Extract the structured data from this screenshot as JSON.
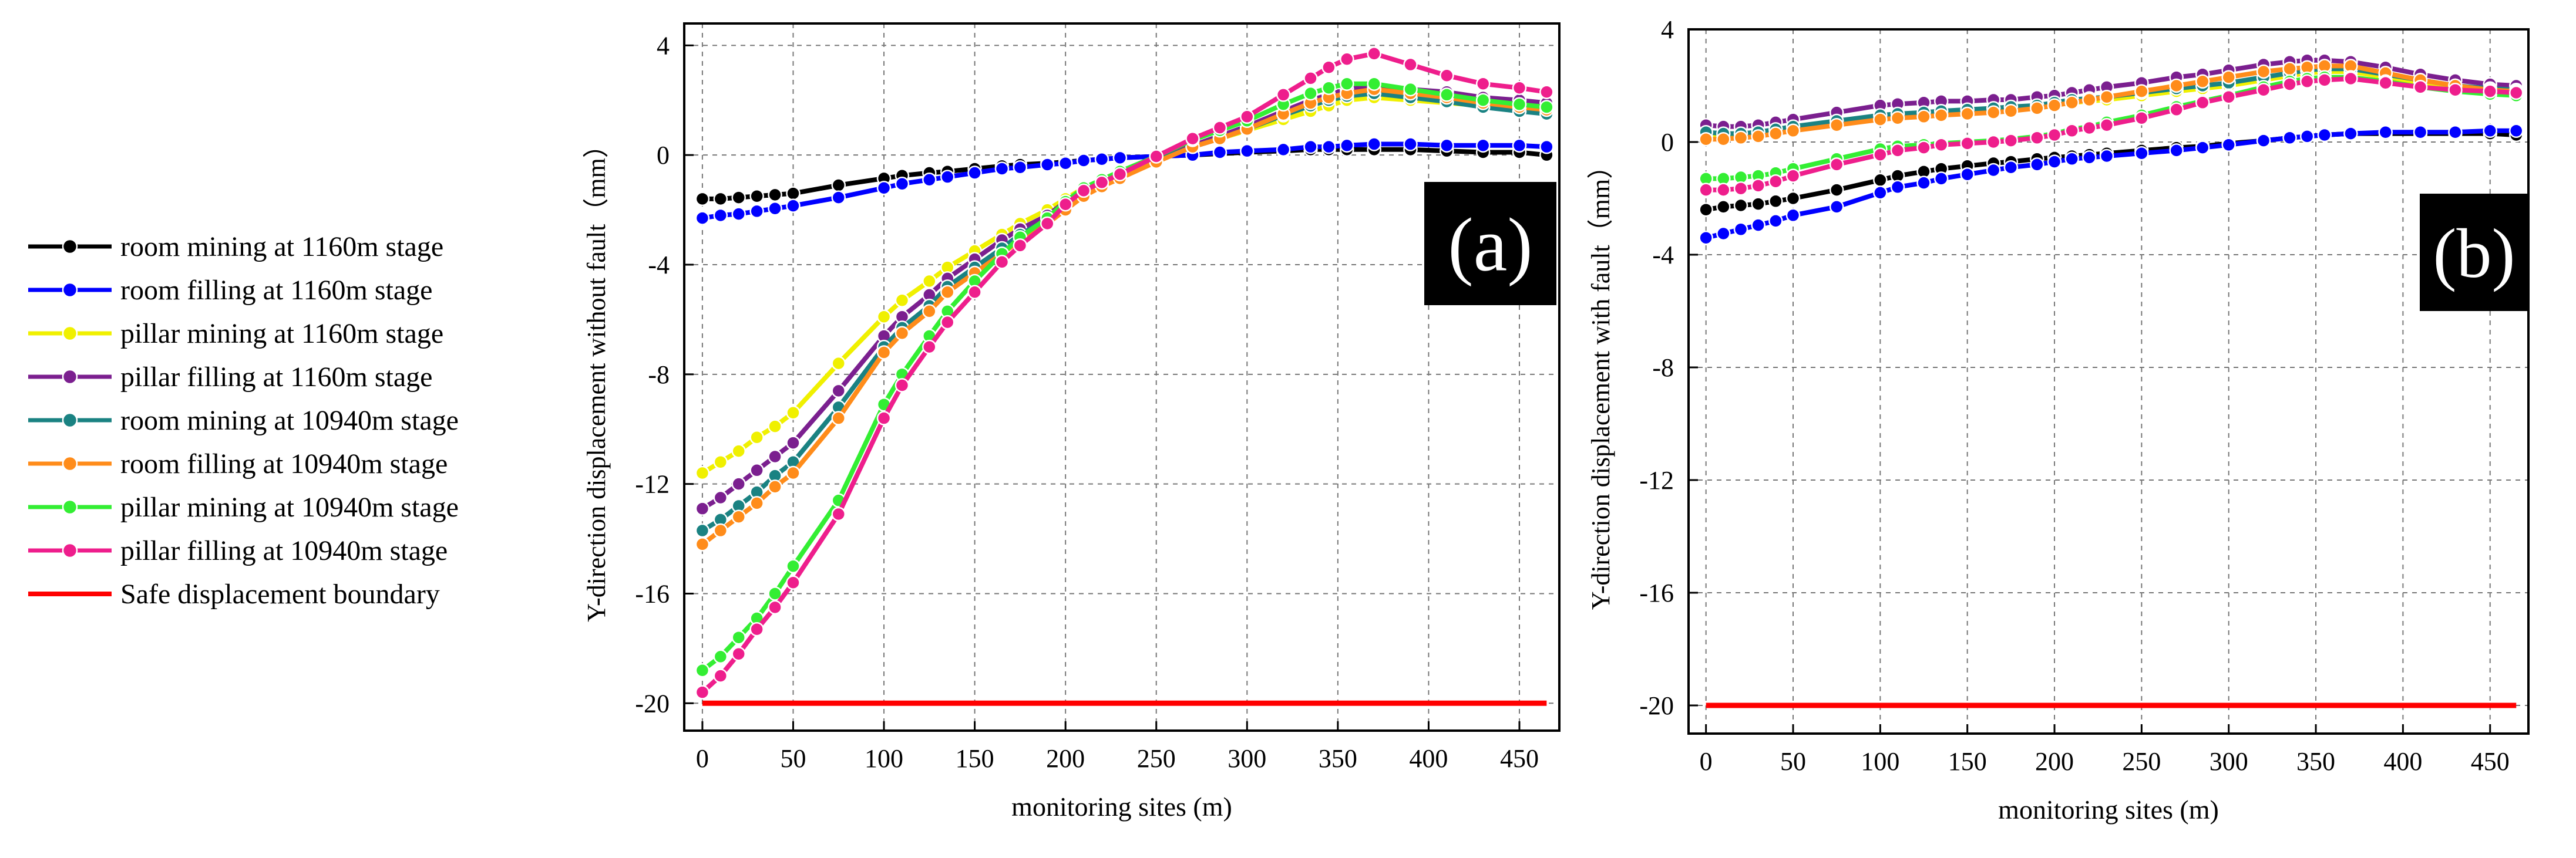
{
  "figure": {
    "panels": [
      "(a)",
      "(b)"
    ],
    "xlabel": "monitoring sites (m)"
  },
  "colors": {
    "room_mining_1160": "#000000",
    "room_filling_1160": "#0000ff",
    "pillar_mining_1160": "#f0f000",
    "pillar_filling_1160": "#7b1f8f",
    "room_mining_10940": "#1a8282",
    "room_filling_10940": "#ff8c1a",
    "pillar_mining_10940": "#33ee33",
    "pillar_filling_10940": "#ee1e8c",
    "safe_boundary": "#ff0000"
  },
  "chart_data": [
    {
      "type": "line",
      "panel_label": "(a)",
      "title": "",
      "xlabel": "monitoring sites (m)",
      "ylabel": "Y-direction displacement without fault（mm）",
      "xlim": [
        -10,
        472
      ],
      "ylim": [
        -21,
        4.8
      ],
      "xticks": [
        0,
        50,
        100,
        150,
        200,
        250,
        300,
        350,
        400,
        450
      ],
      "yticks": [
        4,
        0,
        -4,
        -8,
        -12,
        -16,
        -20
      ],
      "grid": true,
      "legend_position": "left-outside",
      "x": [
        0,
        10,
        20,
        30,
        40,
        50,
        75,
        100,
        110,
        125,
        135,
        150,
        165,
        175,
        190,
        200,
        210,
        220,
        230,
        250,
        270,
        285,
        300,
        320,
        335,
        345,
        355,
        370,
        390,
        410,
        430,
        450,
        465
      ],
      "series": [
        {
          "name": "room mining at 1160m stage",
          "color_key": "room_mining_1160",
          "marker": true,
          "values": [
            -1.6,
            -1.6,
            -1.55,
            -1.5,
            -1.45,
            -1.4,
            -1.1,
            -0.85,
            -0.75,
            -0.65,
            -0.6,
            -0.5,
            -0.4,
            -0.35,
            -0.3,
            -0.25,
            -0.2,
            -0.15,
            -0.1,
            -0.05,
            0.0,
            0.05,
            0.1,
            0.15,
            0.2,
            0.2,
            0.2,
            0.2,
            0.2,
            0.15,
            0.1,
            0.1,
            0.0
          ]
        },
        {
          "name": "room filling at 1160m stage",
          "color_key": "room_filling_1160",
          "marker": true,
          "values": [
            -2.3,
            -2.2,
            -2.15,
            -2.05,
            -1.95,
            -1.85,
            -1.55,
            -1.2,
            -1.05,
            -0.9,
            -0.8,
            -0.65,
            -0.5,
            -0.45,
            -0.35,
            -0.3,
            -0.2,
            -0.15,
            -0.1,
            -0.05,
            0.0,
            0.1,
            0.15,
            0.2,
            0.3,
            0.3,
            0.35,
            0.4,
            0.4,
            0.35,
            0.35,
            0.35,
            0.3
          ]
        },
        {
          "name": "pillar mining at 1160m stage",
          "color_key": "pillar_mining_1160",
          "marker": true,
          "values": [
            -11.6,
            -11.2,
            -10.8,
            -10.3,
            -9.9,
            -9.4,
            -7.6,
            -5.9,
            -5.3,
            -4.6,
            -4.1,
            -3.5,
            -2.9,
            -2.5,
            -2.0,
            -1.6,
            -1.2,
            -0.9,
            -0.6,
            -0.1,
            0.35,
            0.6,
            0.9,
            1.3,
            1.6,
            1.8,
            2.0,
            2.1,
            2.0,
            1.9,
            1.8,
            1.7,
            1.6
          ]
        },
        {
          "name": "pillar filling at 1160m stage",
          "color_key": "pillar_filling_1160",
          "marker": true,
          "values": [
            -12.9,
            -12.5,
            -12.0,
            -11.5,
            -11.0,
            -10.5,
            -8.6,
            -6.6,
            -5.9,
            -5.1,
            -4.5,
            -3.8,
            -3.1,
            -2.7,
            -2.2,
            -1.7,
            -1.3,
            -1.0,
            -0.7,
            -0.15,
            0.35,
            0.7,
            1.05,
            1.6,
            2.0,
            2.2,
            2.4,
            2.5,
            2.4,
            2.3,
            2.1,
            2.0,
            1.9
          ]
        },
        {
          "name": "room mining at 10940m stage",
          "color_key": "room_mining_10940",
          "marker": true,
          "values": [
            -13.7,
            -13.3,
            -12.8,
            -12.3,
            -11.7,
            -11.2,
            -9.2,
            -7.0,
            -6.3,
            -5.5,
            -4.8,
            -4.1,
            -3.4,
            -2.9,
            -2.35,
            -1.85,
            -1.4,
            -1.1,
            -0.8,
            -0.2,
            0.3,
            0.6,
            0.95,
            1.45,
            1.8,
            2.0,
            2.15,
            2.25,
            2.1,
            1.95,
            1.75,
            1.6,
            1.5
          ]
        },
        {
          "name": "room filling at 10940m stage",
          "color_key": "room_filling_10940",
          "marker": true,
          "values": [
            -14.2,
            -13.7,
            -13.2,
            -12.7,
            -12.1,
            -11.6,
            -9.6,
            -7.2,
            -6.5,
            -5.7,
            -5.0,
            -4.3,
            -3.6,
            -3.1,
            -2.5,
            -2.0,
            -1.5,
            -1.15,
            -0.85,
            -0.25,
            0.3,
            0.6,
            0.95,
            1.5,
            1.9,
            2.1,
            2.25,
            2.4,
            2.25,
            2.1,
            1.9,
            1.75,
            1.65
          ]
        },
        {
          "name": "pillar mining at 10940m stage",
          "color_key": "pillar_mining_10940",
          "marker": true,
          "values": [
            -18.8,
            -18.3,
            -17.6,
            -16.9,
            -16.0,
            -15.0,
            -12.6,
            -9.1,
            -8.0,
            -6.6,
            -5.7,
            -4.6,
            -3.6,
            -3.0,
            -2.3,
            -1.7,
            -1.2,
            -0.9,
            -0.6,
            -0.05,
            0.55,
            0.9,
            1.25,
            1.85,
            2.25,
            2.45,
            2.6,
            2.6,
            2.4,
            2.2,
            2.0,
            1.85,
            1.75
          ]
        },
        {
          "name": "pillar filling at 10940m stage",
          "color_key": "pillar_filling_10940",
          "marker": true,
          "values": [
            -19.6,
            -19.0,
            -18.2,
            -17.3,
            -16.5,
            -15.6,
            -13.1,
            -9.6,
            -8.4,
            -7.0,
            -6.1,
            -5.0,
            -3.9,
            -3.3,
            -2.5,
            -1.8,
            -1.3,
            -1.0,
            -0.7,
            -0.05,
            0.6,
            1.0,
            1.4,
            2.2,
            2.8,
            3.2,
            3.5,
            3.7,
            3.3,
            2.9,
            2.6,
            2.45,
            2.3
          ]
        },
        {
          "name": "Safe displacement boundary",
          "color_key": "safe_boundary",
          "marker": false,
          "values": [
            -20,
            -20,
            -20,
            -20,
            -20,
            -20,
            -20,
            -20,
            -20,
            -20,
            -20,
            -20,
            -20,
            -20,
            -20,
            -20,
            -20,
            -20,
            -20,
            -20,
            -20,
            -20,
            -20,
            -20,
            -20,
            -20,
            -20,
            -20,
            -20,
            -20,
            -20,
            -20,
            -20
          ]
        }
      ]
    },
    {
      "type": "line",
      "panel_label": "(b)",
      "title": "",
      "xlabel": "monitoring sites (m)",
      "ylabel": "Y-direction displacement with fault（mm）",
      "xlim": [
        -10,
        472
      ],
      "ylim": [
        -21,
        4
      ],
      "xticks": [
        0,
        50,
        100,
        150,
        200,
        250,
        300,
        350,
        400,
        450
      ],
      "yticks": [
        4,
        0,
        -4,
        -8,
        -12,
        -16,
        -20
      ],
      "grid": true,
      "legend_position": "left-outside",
      "x": [
        0,
        10,
        20,
        30,
        40,
        50,
        75,
        100,
        110,
        125,
        135,
        150,
        165,
        175,
        190,
        200,
        210,
        220,
        230,
        250,
        270,
        285,
        300,
        320,
        335,
        345,
        355,
        370,
        390,
        410,
        430,
        450,
        465
      ],
      "series": [
        {
          "name": "room mining at 1160m stage",
          "color_key": "room_mining_1160",
          "marker": true,
          "values": [
            -2.4,
            -2.3,
            -2.25,
            -2.2,
            -2.1,
            -2.0,
            -1.7,
            -1.35,
            -1.2,
            -1.05,
            -0.95,
            -0.85,
            -0.75,
            -0.7,
            -0.6,
            -0.55,
            -0.5,
            -0.45,
            -0.4,
            -0.3,
            -0.2,
            -0.15,
            -0.05,
            0.05,
            0.15,
            0.2,
            0.25,
            0.3,
            0.3,
            0.3,
            0.3,
            0.3,
            0.25
          ]
        },
        {
          "name": "room filling at 1160m stage",
          "color_key": "room_filling_1160",
          "marker": true,
          "values": [
            -3.4,
            -3.25,
            -3.1,
            -2.95,
            -2.8,
            -2.6,
            -2.3,
            -1.8,
            -1.6,
            -1.45,
            -1.3,
            -1.15,
            -1.0,
            -0.9,
            -0.8,
            -0.7,
            -0.6,
            -0.55,
            -0.5,
            -0.4,
            -0.3,
            -0.2,
            -0.1,
            0.05,
            0.15,
            0.2,
            0.25,
            0.3,
            0.35,
            0.35,
            0.35,
            0.4,
            0.4
          ]
        },
        {
          "name": "pillar mining at 1160m stage",
          "color_key": "pillar_mining_1160",
          "marker": true,
          "values": [
            0.2,
            0.2,
            0.25,
            0.3,
            0.35,
            0.45,
            0.65,
            0.85,
            0.9,
            0.95,
            1.0,
            1.05,
            1.1,
            1.15,
            1.2,
            1.3,
            1.4,
            1.45,
            1.5,
            1.65,
            1.8,
            1.9,
            2.0,
            2.2,
            2.35,
            2.45,
            2.5,
            2.5,
            2.3,
            2.1,
            1.95,
            1.85,
            1.8
          ]
        },
        {
          "name": "pillar filling at 1160m stage",
          "color_key": "pillar_filling_1160",
          "marker": true,
          "values": [
            0.6,
            0.55,
            0.55,
            0.6,
            0.7,
            0.8,
            1.05,
            1.3,
            1.35,
            1.4,
            1.45,
            1.45,
            1.5,
            1.5,
            1.6,
            1.65,
            1.75,
            1.85,
            1.95,
            2.1,
            2.3,
            2.4,
            2.55,
            2.75,
            2.85,
            2.9,
            2.9,
            2.85,
            2.65,
            2.4,
            2.2,
            2.05,
            2.0
          ]
        },
        {
          "name": "room mining at 10940m stage",
          "color_key": "room_mining_10940",
          "marker": true,
          "values": [
            0.35,
            0.3,
            0.3,
            0.35,
            0.45,
            0.55,
            0.75,
            0.95,
            1.0,
            1.05,
            1.1,
            1.15,
            1.2,
            1.25,
            1.3,
            1.4,
            1.5,
            1.55,
            1.6,
            1.75,
            1.9,
            2.0,
            2.1,
            2.3,
            2.45,
            2.55,
            2.6,
            2.6,
            2.4,
            2.2,
            2.0,
            1.9,
            1.85
          ]
        },
        {
          "name": "room filling at 10940m stage",
          "color_key": "room_filling_10940",
          "marker": true,
          "values": [
            0.1,
            0.1,
            0.15,
            0.2,
            0.3,
            0.4,
            0.6,
            0.8,
            0.85,
            0.9,
            0.95,
            1.0,
            1.05,
            1.1,
            1.2,
            1.3,
            1.4,
            1.5,
            1.6,
            1.8,
            2.0,
            2.15,
            2.3,
            2.5,
            2.6,
            2.65,
            2.7,
            2.7,
            2.45,
            2.2,
            2.0,
            1.85,
            1.8
          ]
        },
        {
          "name": "pillar mining at 10940m stage",
          "color_key": "pillar_mining_10940",
          "marker": true,
          "values": [
            -1.3,
            -1.3,
            -1.25,
            -1.2,
            -1.1,
            -0.95,
            -0.6,
            -0.25,
            -0.15,
            -0.1,
            -0.05,
            0.0,
            0.05,
            0.1,
            0.2,
            0.3,
            0.45,
            0.55,
            0.7,
            0.95,
            1.25,
            1.45,
            1.65,
            1.95,
            2.15,
            2.25,
            2.3,
            2.3,
            2.15,
            1.95,
            1.8,
            1.7,
            1.65
          ]
        },
        {
          "name": "pillar filling at 10940m stage",
          "color_key": "pillar_filling_10940",
          "marker": true,
          "values": [
            -1.7,
            -1.7,
            -1.65,
            -1.55,
            -1.4,
            -1.2,
            -0.8,
            -0.45,
            -0.3,
            -0.2,
            -0.1,
            -0.05,
            0.0,
            0.05,
            0.15,
            0.25,
            0.4,
            0.5,
            0.6,
            0.85,
            1.15,
            1.4,
            1.6,
            1.85,
            2.05,
            2.15,
            2.2,
            2.25,
            2.1,
            1.95,
            1.85,
            1.8,
            1.75
          ]
        },
        {
          "name": "Safe displacement boundary",
          "color_key": "safe_boundary",
          "marker": false,
          "values": [
            -20,
            -20,
            -20,
            -20,
            -20,
            -20,
            -20,
            -20,
            -20,
            -20,
            -20,
            -20,
            -20,
            -20,
            -20,
            -20,
            -20,
            -20,
            -20,
            -20,
            -20,
            -20,
            -20,
            -20,
            -20,
            -20,
            -20,
            -20,
            -20,
            -20,
            -20,
            -20,
            -20
          ]
        }
      ]
    }
  ]
}
